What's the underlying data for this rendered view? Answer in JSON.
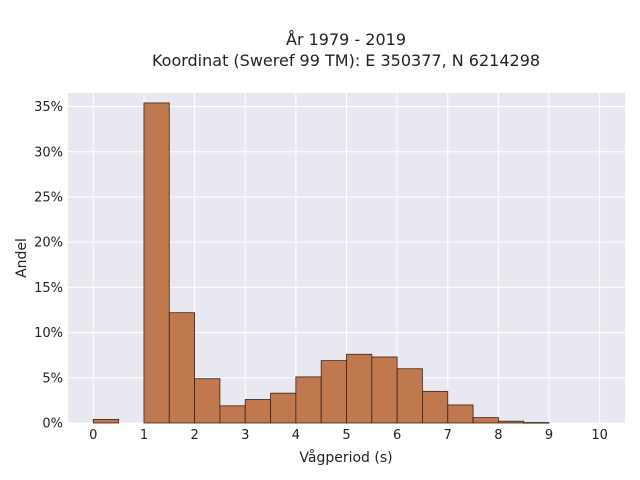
{
  "chart_data": {
    "type": "bar",
    "title": "År 1979 - 2019",
    "subtitle": "Koordinat (Sweref 99 TM): E 350377, N 6214298",
    "xlabel": "Vågperiod (s)",
    "ylabel": "Andel",
    "bin_width": 0.5,
    "bins": [
      {
        "start": 0.0,
        "value": 0.4
      },
      {
        "start": 0.5,
        "value": 0.0
      },
      {
        "start": 1.0,
        "value": 35.4
      },
      {
        "start": 1.5,
        "value": 12.2
      },
      {
        "start": 2.0,
        "value": 4.9
      },
      {
        "start": 2.5,
        "value": 1.9
      },
      {
        "start": 3.0,
        "value": 2.6
      },
      {
        "start": 3.5,
        "value": 3.3
      },
      {
        "start": 4.0,
        "value": 5.1
      },
      {
        "start": 4.5,
        "value": 6.9
      },
      {
        "start": 5.0,
        "value": 7.6
      },
      {
        "start": 5.5,
        "value": 7.3
      },
      {
        "start": 6.0,
        "value": 6.0
      },
      {
        "start": 6.5,
        "value": 3.5
      },
      {
        "start": 7.0,
        "value": 2.0
      },
      {
        "start": 7.5,
        "value": 0.6
      },
      {
        "start": 8.0,
        "value": 0.2
      },
      {
        "start": 8.5,
        "value": 0.05
      },
      {
        "start": 9.0,
        "value": 0.0
      },
      {
        "start": 9.5,
        "value": 0.0
      }
    ],
    "xlim": [
      -0.5,
      10.5
    ],
    "ylim": [
      0,
      36.5
    ],
    "xticks": [
      0,
      1,
      2,
      3,
      4,
      5,
      6,
      7,
      8,
      9,
      10
    ],
    "yticks": [
      0,
      5,
      10,
      15,
      20,
      25,
      30,
      35
    ],
    "ytick_suffix": "%",
    "grid": true,
    "colors": {
      "bar_fill": "#c0784f",
      "bar_stroke": "#3a2418",
      "plot_bg": "#e8e8f0",
      "grid": "#ffffff"
    }
  }
}
